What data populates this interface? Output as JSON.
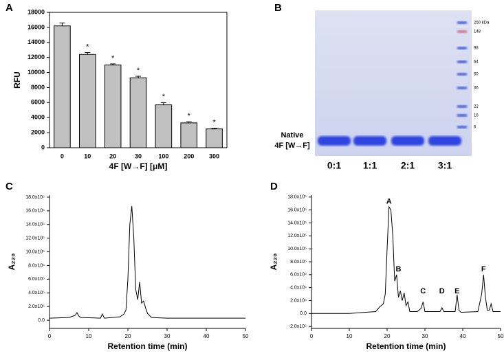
{
  "chart_data": [
    {
      "panel": "A",
      "type": "bar",
      "ylabel": "RFU",
      "xlabel": "4F [W→F] [μM]",
      "categories": [
        "0",
        "10",
        "20",
        "30",
        "100",
        "200",
        "300"
      ],
      "values": [
        16200,
        12400,
        11000,
        9300,
        5700,
        3300,
        2500
      ],
      "errors": [
        400,
        250,
        150,
        200,
        300,
        150,
        100
      ],
      "significance": [
        null,
        "*",
        "*",
        "*",
        "*",
        "*",
        "*"
      ],
      "color": "#c0c0c0",
      "ylim": [
        0,
        18000
      ],
      "yticks": [
        0,
        2000,
        4000,
        6000,
        8000,
        10000,
        12000,
        14000,
        16000,
        18000
      ]
    },
    {
      "panel": "C",
      "type": "line",
      "ylabel": "A₂₂₀",
      "xlabel": "Retention time (min)",
      "color": "#000000",
      "x": [
        0,
        5,
        6,
        6.5,
        7,
        7.5,
        8,
        13,
        13.5,
        14,
        18,
        19,
        19.5,
        20,
        20.5,
        21,
        21.5,
        22,
        22.5,
        23,
        23.5,
        24,
        24.5,
        25,
        26,
        30,
        40,
        50
      ],
      "values": [
        0.3,
        0.4,
        0.6,
        0.7,
        1.1,
        0.6,
        0.4,
        0.3,
        0.9,
        0.3,
        0.5,
        0.9,
        1.5,
        6,
        14,
        16.7,
        12,
        4.5,
        3,
        5.6,
        2.5,
        2.8,
        1.8,
        1.0,
        0.4,
        0.3,
        0.3,
        0.3
      ],
      "xlim": [
        0,
        50
      ],
      "xticks": [
        0,
        10,
        20,
        30,
        40,
        50
      ],
      "ylim": [
        -1.2,
        18.3
      ],
      "yticks": [
        {
          "value": 0,
          "label": "0.0"
        },
        {
          "value": 2,
          "label": "2.0x10⁵"
        },
        {
          "value": 4,
          "label": "4.0x10⁵"
        },
        {
          "value": 6,
          "label": "6.0x10⁵"
        },
        {
          "value": 8,
          "label": "8.0x10⁵"
        },
        {
          "value": 10,
          "label": "10.0x10⁵"
        },
        {
          "value": 12,
          "label": "12.0x10⁵"
        },
        {
          "value": 14,
          "label": "14.0x10⁵"
        },
        {
          "value": 16,
          "label": "16.0x10⁵"
        },
        {
          "value": 18,
          "label": "18.0x10⁵"
        }
      ]
    },
    {
      "panel": "D",
      "type": "line",
      "ylabel": "A₂₂₀",
      "xlabel": "Retention time (min)",
      "color": "#000000",
      "x": [
        0,
        10,
        17,
        18,
        19,
        19.5,
        20,
        20.5,
        21,
        21.5,
        22,
        22.5,
        23,
        23.5,
        24,
        24.5,
        25,
        25.5,
        26,
        28,
        29,
        29.5,
        30,
        31,
        34,
        34.5,
        35,
        36,
        38,
        38.5,
        39,
        39.5,
        40,
        44,
        45,
        45.5,
        46,
        46.5,
        47,
        47.5,
        48,
        50
      ],
      "values": [
        0,
        0,
        0.3,
        1,
        1.5,
        3,
        10,
        16.5,
        16,
        12,
        5,
        6,
        2.5,
        3.5,
        2.0,
        3.2,
        1.2,
        1.8,
        0.3,
        0.3,
        0.8,
        1.8,
        0.3,
        0.3,
        0.3,
        0.9,
        0.3,
        0.3,
        0.3,
        2.9,
        0.5,
        0.2,
        0.2,
        0.3,
        3,
        6,
        2.5,
        0.5,
        0.5,
        1.5,
        0.3,
        0.3
      ],
      "xlim": [
        0,
        50
      ],
      "xticks": [
        0,
        10,
        20,
        30,
        40,
        50
      ],
      "ylim": [
        -2.3,
        18.3
      ],
      "yticks": [
        {
          "value": -2,
          "label": "-2.0x10⁵"
        },
        {
          "value": 0,
          "label": "0.0"
        },
        {
          "value": 2,
          "label": "2.0x10⁵"
        },
        {
          "value": 4,
          "label": "4.0x10⁵"
        },
        {
          "value": 6,
          "label": "6.0x10⁵"
        },
        {
          "value": 8,
          "label": "8.0x10⁵"
        },
        {
          "value": 10,
          "label": "10.0x10⁵"
        },
        {
          "value": 12,
          "label": "12.0x10⁵"
        },
        {
          "value": 14,
          "label": "14.0x10⁵"
        },
        {
          "value": 16,
          "label": "16.0x10⁵"
        },
        {
          "value": 18,
          "label": "18.0x10⁵"
        }
      ],
      "annotations": [
        {
          "text": "A",
          "x": 20.5,
          "y": 17.3
        },
        {
          "text": "B",
          "x": 23,
          "y": 6.8
        },
        {
          "text": "C",
          "x": 29.5,
          "y": 3.4
        },
        {
          "text": "D",
          "x": 34.5,
          "y": 3.4
        },
        {
          "text": "E",
          "x": 38.5,
          "y": 3.4
        },
        {
          "text": "F",
          "x": 45.5,
          "y": 6.8
        }
      ]
    }
  ],
  "gel": {
    "panel": "B",
    "band_label": [
      "Native",
      "4F [W→F]"
    ],
    "lanes": [
      "0:1",
      "1:1",
      "2:1",
      "3:1"
    ],
    "markers": [
      "250 kDa",
      "148",
      "98",
      "64",
      "50",
      "36",
      "22",
      "16",
      "6"
    ]
  }
}
